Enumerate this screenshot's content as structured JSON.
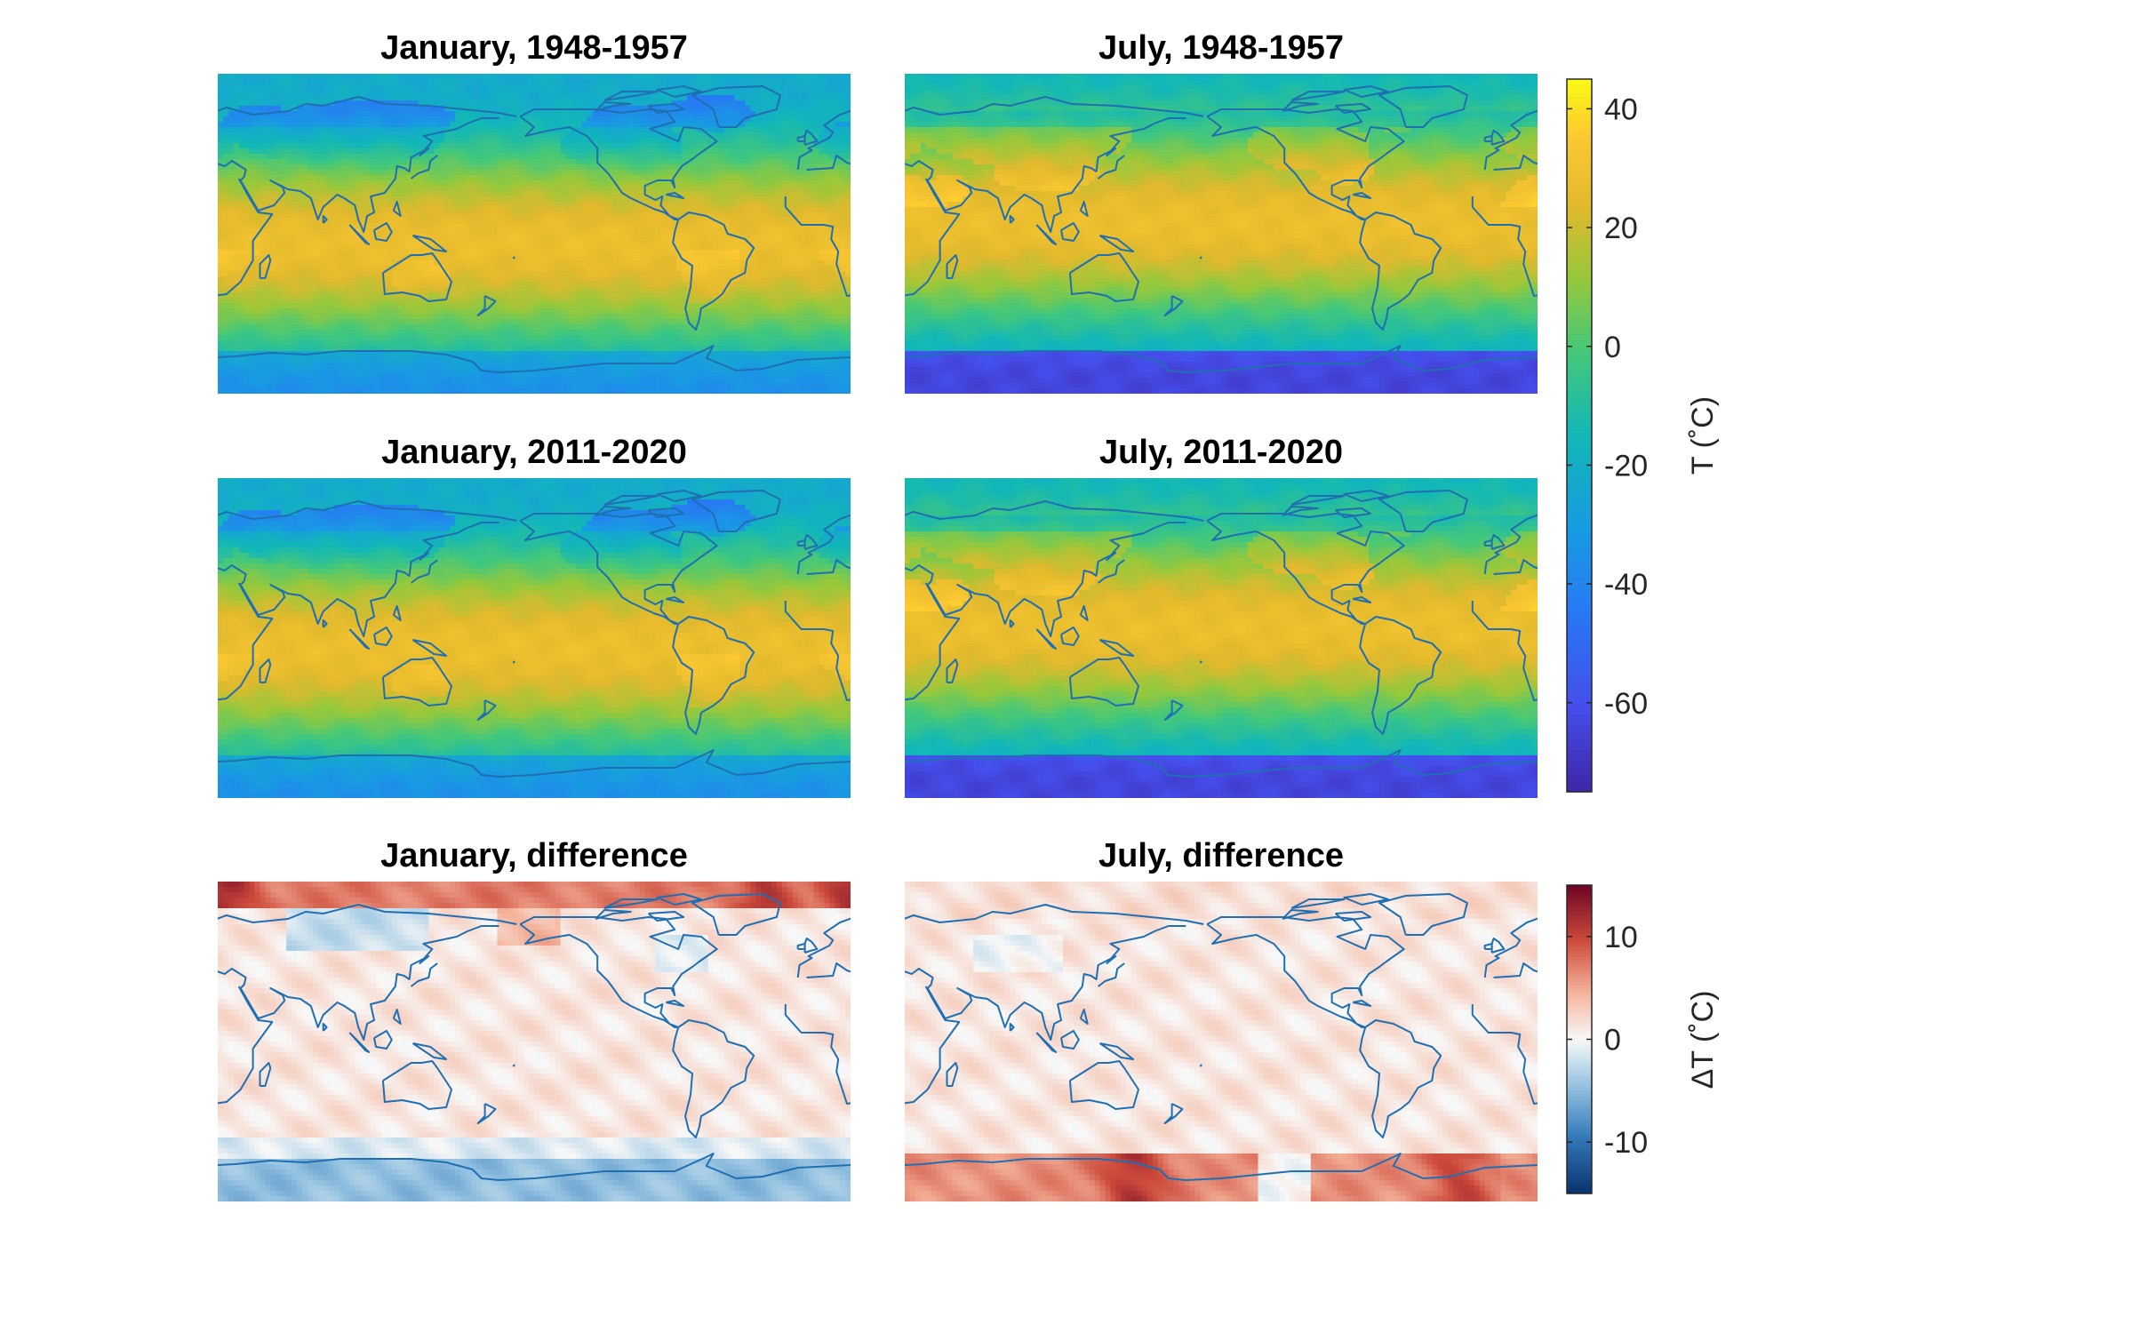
{
  "panels": [
    {
      "title": "January, 1948-1957",
      "field": "t_jan",
      "scale": "temperature"
    },
    {
      "title": "July, 1948-1957",
      "field": "t_jul",
      "scale": "temperature"
    },
    {
      "title": "January, 2011-2020",
      "field": "t_jan",
      "scale": "temperature"
    },
    {
      "title": "July, 2011-2020",
      "field": "t_jul",
      "scale": "temperature"
    },
    {
      "title": "January, difference",
      "field": "d_jan",
      "scale": "difference"
    },
    {
      "title": "July, difference",
      "field": "d_jul",
      "scale": "difference"
    }
  ],
  "colorbars": {
    "temperature": {
      "label": "T (˚C)",
      "range": [
        -75,
        45
      ],
      "ticks": [
        40,
        20,
        0,
        -20,
        -40,
        -60
      ],
      "tick_labels": [
        "40",
        "20",
        "0",
        "-20",
        "-40",
        "-60"
      ],
      "colormap": "parula"
    },
    "difference": {
      "label": "ΔT (˚C)",
      "range": [
        -15,
        15
      ],
      "ticks": [
        10,
        0,
        -10
      ],
      "tick_labels": [
        "10",
        "0",
        "-10"
      ],
      "colormap": "red-white-blue"
    }
  },
  "map": {
    "projection": "equirectangular",
    "lon_range": [
      20,
      380
    ],
    "lat_range": [
      -90,
      90
    ],
    "coastline_color": "#1f6fb2"
  }
}
